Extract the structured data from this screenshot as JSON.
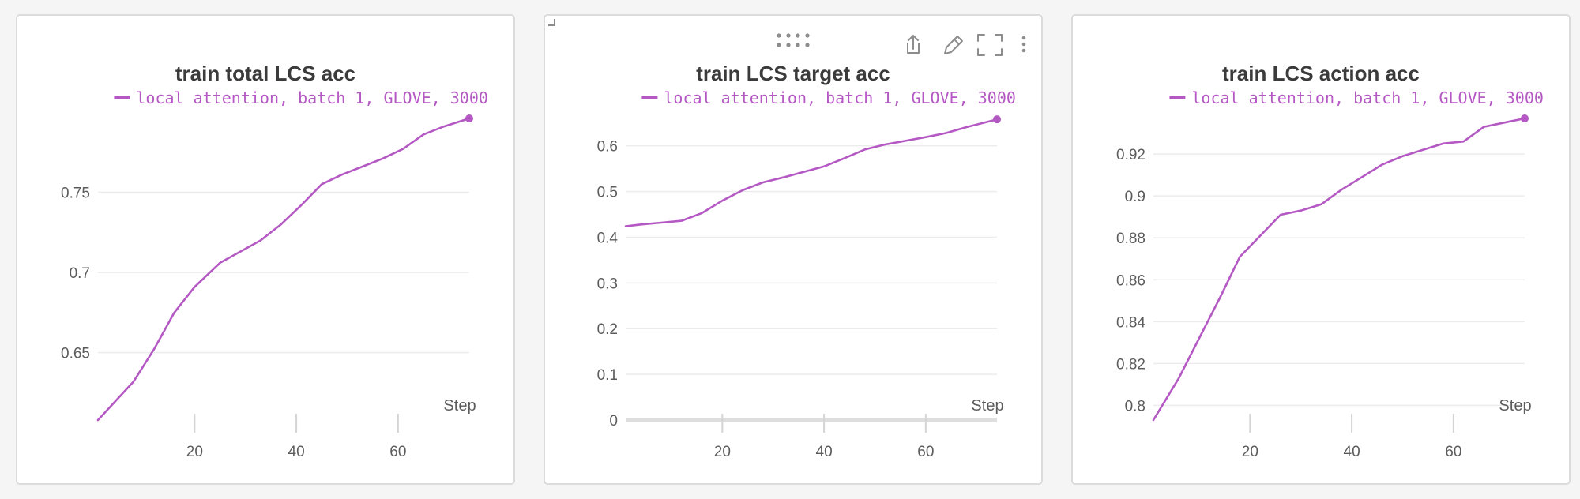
{
  "colors": {
    "series": "#b458c3",
    "grid": "#ececec",
    "text": "#3b3b3b",
    "axis_text": "#5c5c5c"
  },
  "toolbar_icons": [
    "drag-handle-icon",
    "share-icon",
    "edit-icon",
    "fullscreen-icon",
    "more-options-icon"
  ],
  "chart_data": [
    {
      "type": "line",
      "title": "train total LCS acc",
      "xlabel": "Step",
      "ylabel": "",
      "legend_position": "top",
      "grid": true,
      "xlim": [
        1,
        74
      ],
      "ylim": [
        0.608,
        0.796
      ],
      "xticks": [
        20,
        40,
        60
      ],
      "yticks": [
        0.65,
        0.7,
        0.75
      ],
      "ytick_labels": [
        "0.65",
        "0.7",
        "0.75"
      ],
      "x_baseline": false,
      "series": [
        {
          "name": "local attention, batch 1, GLOVE, 3000",
          "x": [
            1,
            8,
            12,
            16,
            20,
            25,
            29,
            33,
            37,
            41,
            45,
            49,
            53,
            57,
            61,
            65,
            69,
            74
          ],
          "y": [
            0.608,
            0.632,
            0.652,
            0.675,
            0.691,
            0.706,
            0.713,
            0.72,
            0.73,
            0.742,
            0.755,
            0.761,
            0.766,
            0.771,
            0.777,
            0.786,
            0.791,
            0.796
          ]
        }
      ]
    },
    {
      "type": "line",
      "title": "train LCS target acc",
      "xlabel": "Step",
      "ylabel": "",
      "legend_position": "top",
      "grid": true,
      "xlim": [
        1,
        74
      ],
      "ylim": [
        0,
        0.66
      ],
      "xticks": [
        20,
        40,
        60
      ],
      "yticks": [
        0,
        0.1,
        0.2,
        0.3,
        0.4,
        0.5,
        0.6
      ],
      "ytick_labels": [
        "0",
        "0.1",
        "0.2",
        "0.3",
        "0.4",
        "0.5",
        "0.6"
      ],
      "x_baseline": true,
      "series": [
        {
          "name": "local attention, batch 1, GLOVE, 3000",
          "x": [
            1,
            4,
            8,
            12,
            16,
            20,
            24,
            28,
            32,
            36,
            40,
            44,
            48,
            52,
            56,
            60,
            64,
            68,
            74
          ],
          "y": [
            0.424,
            0.428,
            0.432,
            0.436,
            0.453,
            0.48,
            0.503,
            0.52,
            0.531,
            0.543,
            0.555,
            0.573,
            0.592,
            0.603,
            0.611,
            0.619,
            0.628,
            0.641,
            0.658
          ]
        }
      ]
    },
    {
      "type": "line",
      "title": "train LCS action acc",
      "xlabel": "Step",
      "ylabel": "",
      "legend_position": "top",
      "grid": true,
      "xlim": [
        1,
        74
      ],
      "ylim": [
        0.793,
        0.937
      ],
      "xticks": [
        20,
        40,
        60
      ],
      "yticks": [
        0.8,
        0.82,
        0.84,
        0.86,
        0.88,
        0.9,
        0.92
      ],
      "ytick_labels": [
        "0.8",
        "0.82",
        "0.84",
        "0.86",
        "0.88",
        "0.9",
        "0.92"
      ],
      "x_baseline": false,
      "series": [
        {
          "name": "local attention, batch 1, GLOVE, 3000",
          "x": [
            1,
            6,
            10,
            14,
            18,
            22,
            26,
            30,
            34,
            38,
            42,
            46,
            50,
            54,
            58,
            62,
            66,
            70,
            74
          ],
          "y": [
            0.793,
            0.813,
            0.832,
            0.851,
            0.871,
            0.881,
            0.891,
            0.893,
            0.896,
            0.903,
            0.909,
            0.915,
            0.919,
            0.922,
            0.925,
            0.926,
            0.933,
            0.935,
            0.937
          ]
        }
      ]
    }
  ]
}
